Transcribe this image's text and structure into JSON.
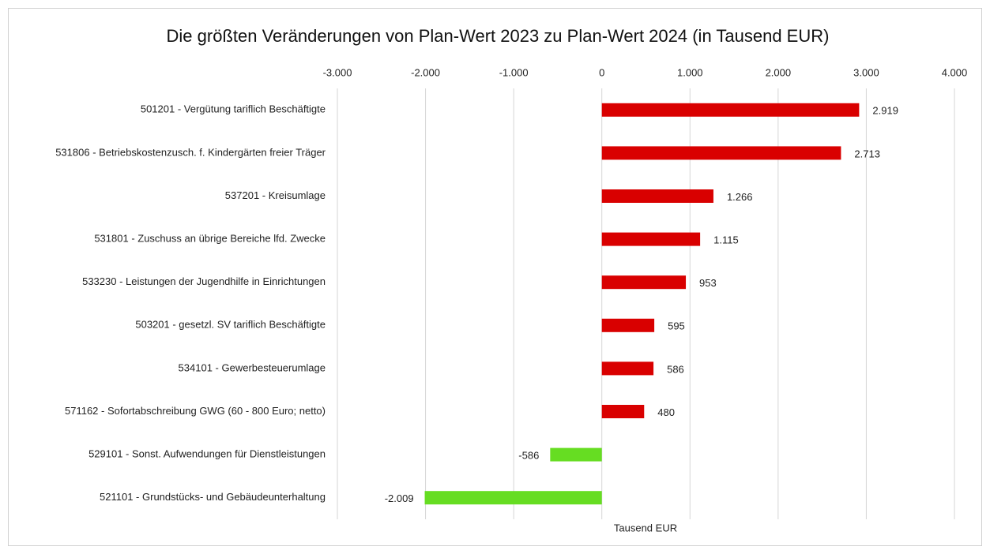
{
  "chart_data": {
    "type": "bar",
    "orientation": "horizontal",
    "title": "Die größten Veränderungen von  Plan-Wert 2023  zu  Plan-Wert 2024  (in Tausend EUR)",
    "xlabel": "Tausend EUR",
    "categories": [
      "501201 - Vergütung tariflich Beschäftigte",
      "531806 - Betriebskostenzusch. f. Kindergärten freier Träger",
      "537201 - Kreisumlage",
      "531801 - Zuschuss an übrige Bereiche lfd. Zwecke",
      "533230 - Leistungen der Jugendhilfe in Einrichtungen",
      "503201 - gesetzl. SV tariflich Beschäftigte",
      "534101 - Gewerbesteuerumlage",
      "571162 - Sofortabschreibung GWG (60 - 800 Euro; netto)",
      "529101 - Sonst. Aufwendungen für Dienstleistungen",
      "521101 - Grundstücks- und Gebäudeunterhaltung"
    ],
    "values": [
      2919,
      2713,
      1266,
      1115,
      953,
      595,
      586,
      480,
      -586,
      -2009
    ],
    "value_labels": [
      "2.919",
      "2.713",
      "1.266",
      "1.115",
      "953",
      "595",
      "586",
      "480",
      "-586",
      "-2.009"
    ],
    "colors": [
      "#d90000",
      "#d90000",
      "#d90000",
      "#d90000",
      "#d90000",
      "#d90000",
      "#d90000",
      "#d90000",
      "#66dd22",
      "#66dd22"
    ],
    "xlim": [
      -3000,
      4000
    ],
    "xticks": [
      {
        "value": -3000,
        "label": "-3.000"
      },
      {
        "value": -2000,
        "label": "-2.000"
      },
      {
        "value": -1000,
        "label": "-1.000"
      },
      0,
      {
        "value": 1000,
        "label": "1.000"
      },
      {
        "value": 2000,
        "label": "2.000"
      },
      {
        "value": 3000,
        "label": "3.000"
      },
      {
        "value": 4000,
        "label": "4.000"
      }
    ],
    "grid": true
  }
}
